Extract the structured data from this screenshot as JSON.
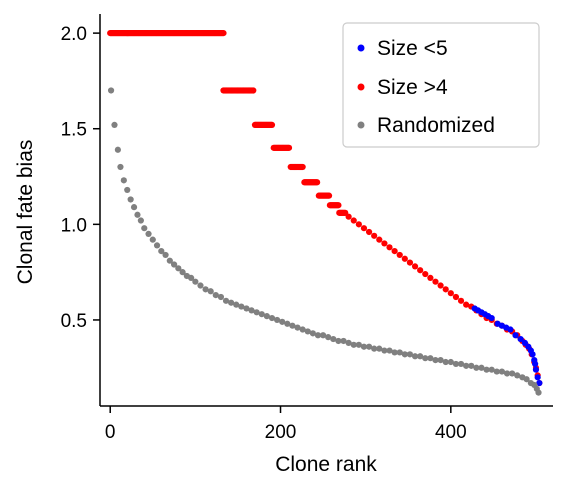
{
  "chart_data": {
    "type": "scatter",
    "title": "",
    "xlabel": "Clone rank",
    "ylabel": "Clonal fate bias",
    "xlim": [
      -12,
      520
    ],
    "ylim": [
      0.05,
      2.1
    ],
    "x_ticks": [
      0,
      200,
      400
    ],
    "x_tick_labels": [
      "0",
      "200",
      "400"
    ],
    "y_ticks": [
      0.5,
      1.0,
      1.5,
      2.0
    ],
    "y_tick_labels": [
      "0.5",
      "1.0",
      "1.5",
      "2.0"
    ],
    "grid": false,
    "legend_position": "top-right",
    "series": [
      {
        "name": "Size <5",
        "color": "#0000ff",
        "points": [
          [
            428,
            0.56
          ],
          [
            432,
            0.55
          ],
          [
            436,
            0.54
          ],
          [
            440,
            0.53
          ],
          [
            444,
            0.52
          ],
          [
            448,
            0.51
          ],
          [
            455,
            0.48
          ],
          [
            460,
            0.47
          ],
          [
            465,
            0.46
          ],
          [
            470,
            0.45
          ],
          [
            476,
            0.42
          ],
          [
            482,
            0.4
          ],
          [
            487,
            0.38
          ],
          [
            491,
            0.36
          ],
          [
            494,
            0.34
          ],
          [
            496,
            0.32
          ],
          [
            498,
            0.29
          ],
          [
            499,
            0.27
          ],
          [
            500,
            0.24
          ],
          [
            502,
            0.2
          ],
          [
            504,
            0.17
          ]
        ]
      },
      {
        "name": "Size >4",
        "segments": [
          {
            "x_start": 0,
            "x_end": 133,
            "y": 2.0
          },
          {
            "x_start": 133,
            "x_end": 168,
            "y": 1.7
          },
          {
            "x_start": 170,
            "x_end": 190,
            "y": 1.52
          },
          {
            "x_start": 192,
            "x_end": 210,
            "y": 1.4
          },
          {
            "x_start": 212,
            "x_end": 226,
            "y": 1.3
          },
          {
            "x_start": 228,
            "x_end": 243,
            "y": 1.22
          },
          {
            "x_start": 245,
            "x_end": 257,
            "y": 1.15
          },
          {
            "x_start": 258,
            "x_end": 268,
            "y": 1.1
          },
          {
            "x_start": 269,
            "x_end": 276,
            "y": 1.06
          }
        ],
        "points": [
          [
            280,
            1.04
          ],
          [
            286,
            1.02
          ],
          [
            292,
            1.0
          ],
          [
            298,
            0.98
          ],
          [
            304,
            0.96
          ],
          [
            310,
            0.94
          ],
          [
            316,
            0.92
          ],
          [
            322,
            0.9
          ],
          [
            328,
            0.88
          ],
          [
            334,
            0.86
          ],
          [
            340,
            0.84
          ],
          [
            346,
            0.82
          ],
          [
            352,
            0.8
          ],
          [
            358,
            0.78
          ],
          [
            364,
            0.76
          ],
          [
            370,
            0.74
          ],
          [
            376,
            0.72
          ],
          [
            382,
            0.7
          ],
          [
            388,
            0.68
          ],
          [
            394,
            0.66
          ],
          [
            400,
            0.64
          ],
          [
            406,
            0.62
          ],
          [
            412,
            0.6
          ],
          [
            418,
            0.58
          ],
          [
            424,
            0.57
          ],
          [
            430,
            0.55
          ],
          [
            436,
            0.53
          ],
          [
            442,
            0.51
          ],
          [
            448,
            0.5
          ],
          [
            454,
            0.48
          ],
          [
            460,
            0.47
          ],
          [
            466,
            0.45
          ],
          [
            472,
            0.44
          ],
          [
            478,
            0.42
          ],
          [
            484,
            0.39
          ],
          [
            488,
            0.37
          ],
          [
            492,
            0.35
          ],
          [
            495,
            0.32
          ],
          [
            498,
            0.28
          ],
          [
            500,
            0.25
          ],
          [
            502,
            0.21
          ],
          [
            504,
            0.17
          ]
        ],
        "color": "#ff0000"
      },
      {
        "name": "Randomized",
        "color": "#808080",
        "points": [
          [
            1,
            1.7
          ],
          [
            5,
            1.52
          ],
          [
            9,
            1.39
          ],
          [
            12,
            1.3
          ],
          [
            16,
            1.23
          ],
          [
            20,
            1.18
          ],
          [
            24,
            1.13
          ],
          [
            28,
            1.09
          ],
          [
            32,
            1.05
          ],
          [
            36,
            1.02
          ],
          [
            40,
            0.98
          ],
          [
            45,
            0.95
          ],
          [
            50,
            0.92
          ],
          [
            55,
            0.89
          ],
          [
            60,
            0.86
          ],
          [
            65,
            0.84
          ],
          [
            70,
            0.81
          ],
          [
            75,
            0.79
          ],
          [
            80,
            0.77
          ],
          [
            85,
            0.75
          ],
          [
            90,
            0.73
          ],
          [
            95,
            0.72
          ],
          [
            100,
            0.7
          ],
          [
            106,
            0.68
          ],
          [
            112,
            0.66
          ],
          [
            118,
            0.65
          ],
          [
            124,
            0.63
          ],
          [
            130,
            0.62
          ],
          [
            136,
            0.6
          ],
          [
            142,
            0.59
          ],
          [
            148,
            0.58
          ],
          [
            154,
            0.57
          ],
          [
            160,
            0.56
          ],
          [
            166,
            0.55
          ],
          [
            172,
            0.54
          ],
          [
            178,
            0.53
          ],
          [
            184,
            0.52
          ],
          [
            190,
            0.51
          ],
          [
            196,
            0.5
          ],
          [
            202,
            0.49
          ],
          [
            208,
            0.48
          ],
          [
            214,
            0.47
          ],
          [
            220,
            0.46
          ],
          [
            226,
            0.45
          ],
          [
            232,
            0.44
          ],
          [
            238,
            0.43
          ],
          [
            244,
            0.42
          ],
          [
            250,
            0.42
          ],
          [
            256,
            0.41
          ],
          [
            262,
            0.4
          ],
          [
            268,
            0.39
          ],
          [
            274,
            0.39
          ],
          [
            280,
            0.38
          ],
          [
            286,
            0.37
          ],
          [
            292,
            0.37
          ],
          [
            298,
            0.36
          ],
          [
            304,
            0.36
          ],
          [
            310,
            0.35
          ],
          [
            316,
            0.35
          ],
          [
            322,
            0.34
          ],
          [
            328,
            0.34
          ],
          [
            334,
            0.33
          ],
          [
            340,
            0.33
          ],
          [
            346,
            0.32
          ],
          [
            352,
            0.32
          ],
          [
            358,
            0.31
          ],
          [
            364,
            0.31
          ],
          [
            370,
            0.3
          ],
          [
            376,
            0.3
          ],
          [
            382,
            0.29
          ],
          [
            388,
            0.29
          ],
          [
            394,
            0.28
          ],
          [
            400,
            0.28
          ],
          [
            406,
            0.27
          ],
          [
            412,
            0.27
          ],
          [
            418,
            0.26
          ],
          [
            424,
            0.26
          ],
          [
            430,
            0.25
          ],
          [
            436,
            0.25
          ],
          [
            442,
            0.24
          ],
          [
            448,
            0.24
          ],
          [
            454,
            0.23
          ],
          [
            460,
            0.23
          ],
          [
            466,
            0.22
          ],
          [
            472,
            0.22
          ],
          [
            478,
            0.21
          ],
          [
            484,
            0.2
          ],
          [
            489,
            0.19
          ],
          [
            494,
            0.17
          ],
          [
            498,
            0.16
          ],
          [
            501,
            0.14
          ],
          [
            503,
            0.12
          ]
        ]
      }
    ]
  }
}
